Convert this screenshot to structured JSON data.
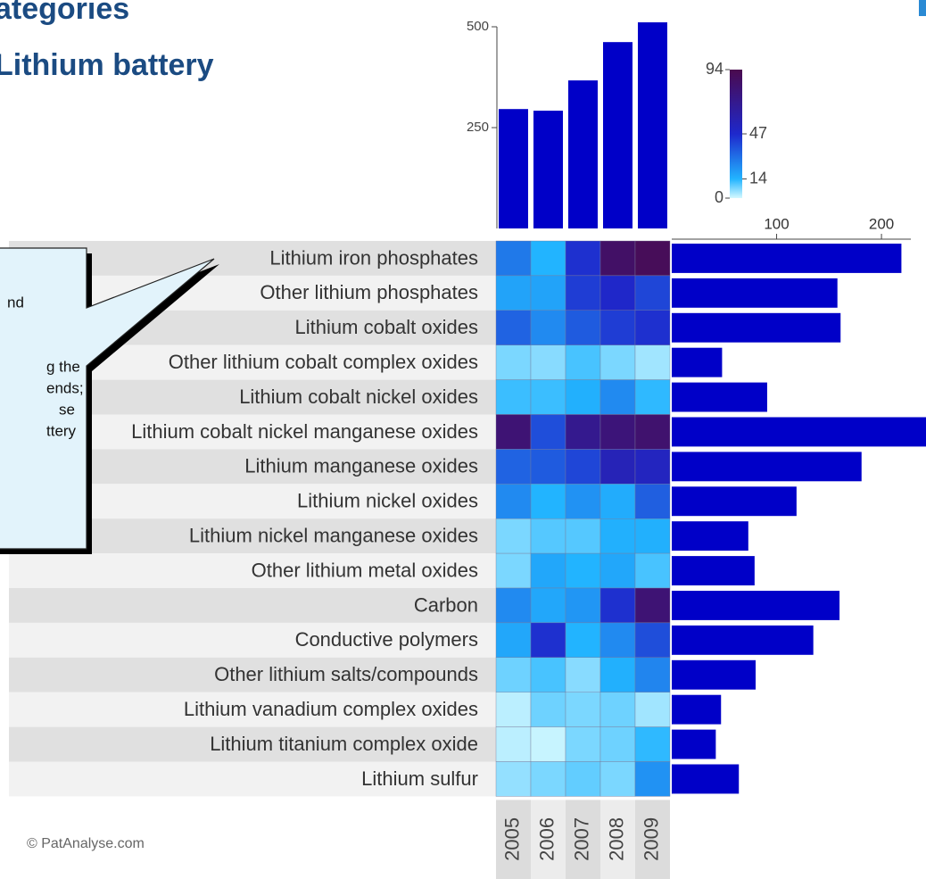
{
  "chart_data": {
    "type": "heatmap",
    "title": [
      "ategories",
      "Lithium battery"
    ],
    "rows": [
      "Lithium iron phosphates",
      "Other lithium phosphates",
      "Lithium cobalt oxides",
      "Other lithium cobalt complex oxides",
      "Lithium cobalt nickel oxides",
      "Lithium cobalt nickel manganese oxides",
      "Lithium manganese oxides",
      "Lithium nickel oxides",
      "Lithium nickel manganese oxides",
      "Other  lithium metal oxides",
      "Carbon",
      "Conductive polymers",
      "Other lithium salts/compounds",
      "Lithium vanadium complex oxides",
      "Lithium titanium complex oxide",
      "Lithium sulfur"
    ],
    "columns": [
      "2005",
      "2006",
      "2007",
      "2008",
      "2009"
    ],
    "values": [
      [
        28,
        14,
        45,
        85,
        90
      ],
      [
        18,
        18,
        42,
        48,
        40
      ],
      [
        33,
        24,
        35,
        42,
        45
      ],
      [
        7,
        6,
        11,
        7,
        4
      ],
      [
        12,
        12,
        15,
        24,
        13
      ],
      [
        80,
        38,
        70,
        78,
        82
      ],
      [
        33,
        35,
        40,
        55,
        52
      ],
      [
        24,
        14,
        22,
        16,
        34
      ],
      [
        7,
        10,
        10,
        15,
        15
      ],
      [
        7,
        17,
        14,
        17,
        11
      ],
      [
        24,
        17,
        21,
        45,
        80
      ],
      [
        17,
        45,
        14,
        24,
        38
      ],
      [
        8,
        11,
        6,
        15,
        25
      ],
      [
        2,
        8,
        7,
        8,
        4
      ],
      [
        2,
        1,
        7,
        8,
        13
      ],
      [
        5,
        7,
        9,
        7,
        22
      ]
    ],
    "colorbar": {
      "lim": [
        0,
        94
      ],
      "ticks": [
        0,
        14,
        47,
        94
      ],
      "colors": [
        "#d4f9ff",
        "#22b4ff",
        "#1e28cc",
        "#4b0a4e"
      ]
    },
    "top_bars": {
      "values": [
        296,
        292,
        367,
        462,
        511
      ],
      "color": "#0000c8",
      "ylim": [
        0,
        500
      ],
      "yticks": [
        250,
        500
      ]
    },
    "side_bars": {
      "values": [
        219,
        158,
        161,
        48,
        91,
        250,
        181,
        119,
        73,
        79,
        160,
        135,
        80,
        47,
        42,
        64
      ],
      "color": "#0000c8",
      "xlim": [
        0,
        228
      ],
      "xticks": [
        100,
        200
      ]
    }
  },
  "callout": {
    "lines": [
      "nd",
      "g the",
      "ends;",
      "se",
      "ttery"
    ]
  },
  "footer": "© PatAnalyse.com"
}
